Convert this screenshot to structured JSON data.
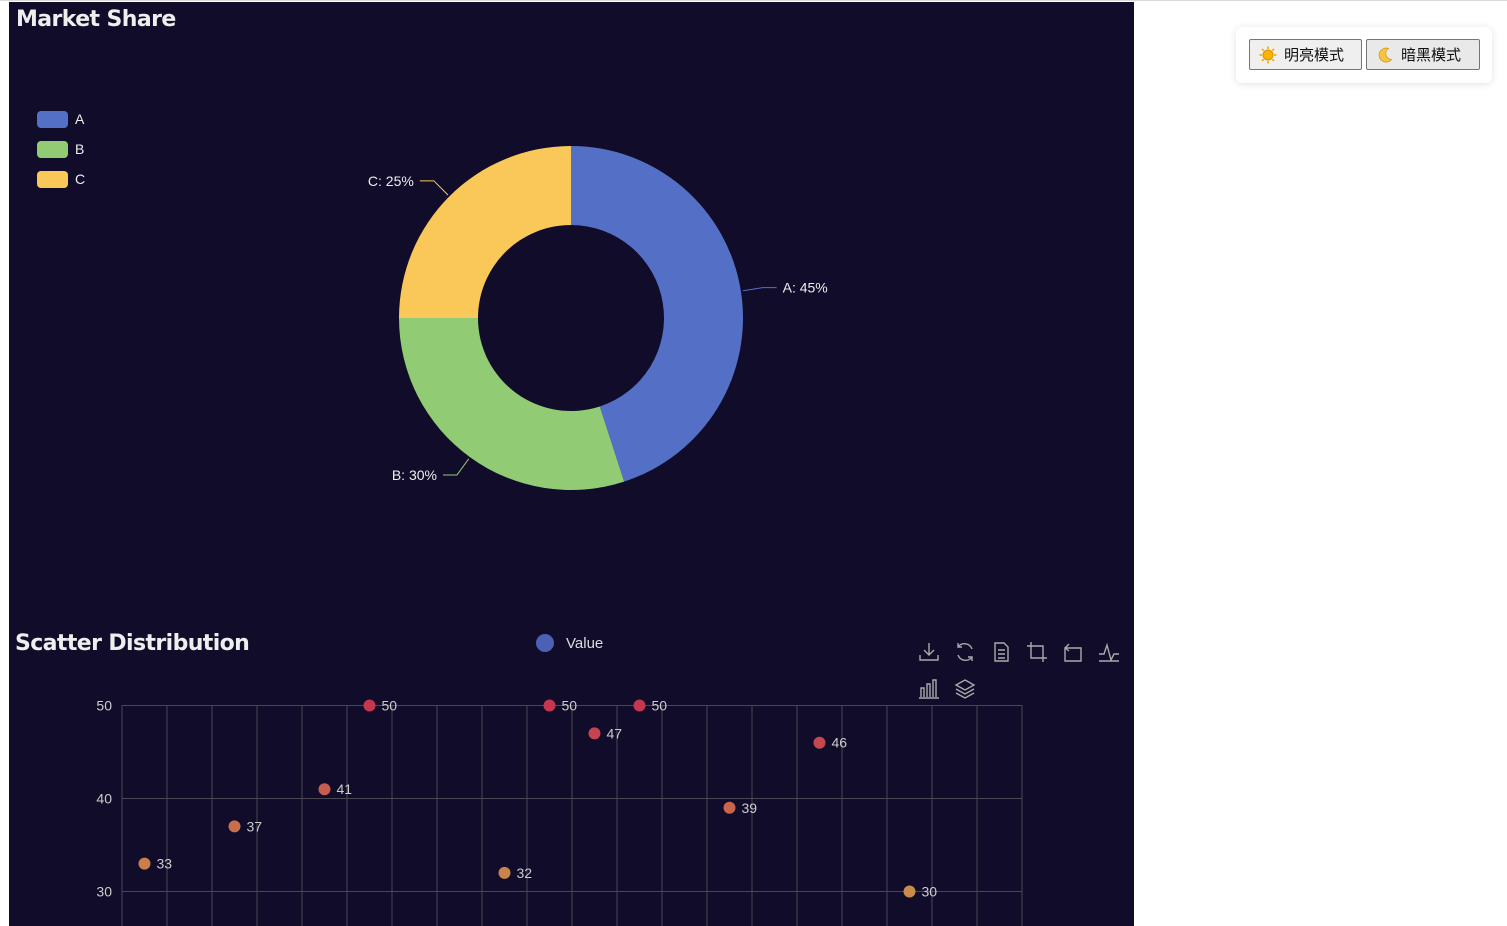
{
  "theme_switcher": {
    "light_label": "明亮模式",
    "dark_label": "暗黑模式",
    "light_icon": "sun-icon",
    "dark_icon": "moon-icon"
  },
  "colors": {
    "background": "#100c2a",
    "series_blue": "#5470c6",
    "series_green": "#91cc75",
    "series_yellow": "#fac858",
    "text": "#eeeeee",
    "grid": "#484753"
  },
  "chart_data": [
    {
      "type": "pie",
      "title": "Market Share",
      "legend": [
        "A",
        "B",
        "C"
      ],
      "legend_position": "left",
      "donut": true,
      "slices": [
        {
          "name": "A",
          "value": 45,
          "label": "A: 45%",
          "color": "#5470c6"
        },
        {
          "name": "B",
          "value": 30,
          "label": "B: 30%",
          "color": "#91cc75"
        },
        {
          "name": "C",
          "value": 25,
          "label": "C: 25%",
          "color": "#fac858"
        }
      ]
    },
    {
      "type": "scatter",
      "title": "Scatter Distribution",
      "legend": [
        "Value"
      ],
      "legend_position": "top",
      "ylim": [
        20,
        50
      ],
      "yticks": [
        50,
        40,
        30
      ],
      "grid": true,
      "x_count": 20,
      "points": [
        {
          "x": 0,
          "y": 33,
          "label": "33"
        },
        {
          "x": 2,
          "y": 37,
          "label": "37"
        },
        {
          "x": 4,
          "y": 41,
          "label": "41"
        },
        {
          "x": 5,
          "y": 50,
          "label": "50"
        },
        {
          "x": 8,
          "y": 32,
          "label": "32"
        },
        {
          "x": 9,
          "y": 50,
          "label": "50"
        },
        {
          "x": 10,
          "y": 47,
          "label": "47"
        },
        {
          "x": 11,
          "y": 50,
          "label": "50"
        },
        {
          "x": 13,
          "y": 39,
          "label": "39"
        },
        {
          "x": 15,
          "y": 46,
          "label": "46"
        },
        {
          "x": 17,
          "y": 30,
          "label": "30"
        }
      ],
      "visual_map": {
        "min": 30,
        "max": 50,
        "low_color": "#c98c4c",
        "high_color": "#c4374f"
      },
      "toolbox": [
        "download-icon",
        "refresh-icon",
        "data-view-icon",
        "zoom-icon",
        "zoom-reset-icon",
        "line-type-icon",
        "bar-type-icon",
        "stack-icon"
      ]
    }
  ]
}
